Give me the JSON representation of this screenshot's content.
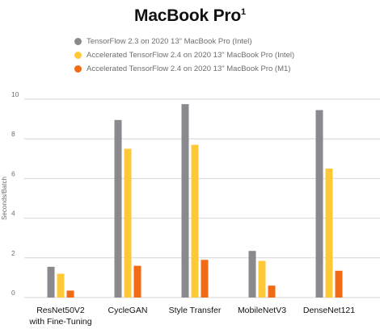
{
  "chart_data": {
    "type": "bar",
    "title": "MacBook Pro",
    "title_superscript": "1",
    "ylabel": "Seconds/Batch",
    "xlabel": "",
    "ylim": [
      0,
      10
    ],
    "yticks": [
      "0",
      "2",
      "4",
      "6",
      "8",
      "10"
    ],
    "grid": true,
    "legend_position": "top",
    "categories": [
      [
        "ResNet50V2",
        "with Fine-Tuning"
      ],
      [
        "CycleGAN"
      ],
      [
        "Style Transfer"
      ],
      [
        "MobileNetV3"
      ],
      [
        "DenseNet121"
      ]
    ],
    "series": [
      {
        "name": "TensorFlow 2.3 on 2020 13\" MacBook Pro (Intel)",
        "color": "#8a8a8e",
        "values": [
          1.55,
          8.95,
          9.75,
          2.35,
          9.45
        ]
      },
      {
        "name": "Accelerated TensorFlow 2.4 on 2020 13\" MacBook Pro (Intel)",
        "color": "#ffc837",
        "values": [
          1.2,
          7.5,
          7.7,
          1.85,
          6.5
        ]
      },
      {
        "name": "Accelerated TensorFlow 2.4 on 2020 13\" MacBook Pro (M1)",
        "color": "#f26a13",
        "values": [
          0.35,
          1.6,
          1.9,
          0.6,
          1.35
        ]
      }
    ]
  }
}
